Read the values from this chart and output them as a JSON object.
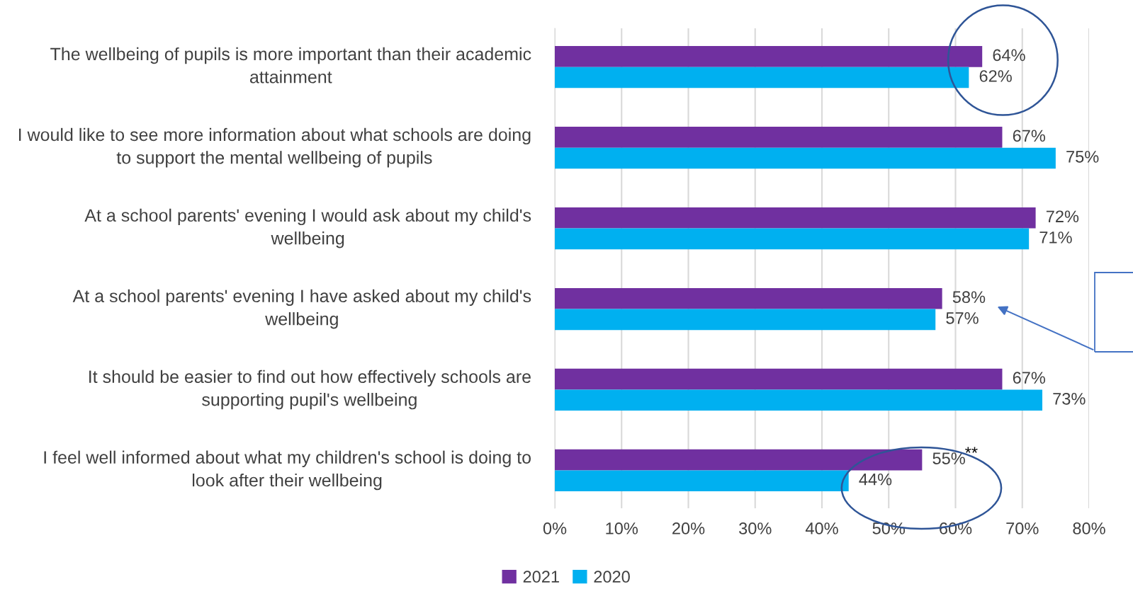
{
  "chart_data": {
    "type": "bar",
    "orientation": "horizontal",
    "categories": [
      "The wellbeing of pupils is more important than their academic attainment",
      "I would like to see more information about what schools are doing to support the mental wellbeing of pupils",
      "At a school parents' evening I would ask about my child's wellbeing",
      "At a school parents' evening I have asked about my child's wellbeing",
      "It should be easier to find out how effectively schools are supporting pupil's wellbeing",
      "I feel well informed about what my children's school is doing to look after their wellbeing"
    ],
    "series": [
      {
        "name": "2021",
        "color": "#7030a0",
        "values": [
          64,
          67,
          72,
          58,
          67,
          55
        ],
        "value_labels": [
          "64%",
          "67%",
          "72%",
          "58%",
          "67%",
          "55%"
        ]
      },
      {
        "name": "2020",
        "color": "#00b0f0",
        "values": [
          62,
          75,
          71,
          57,
          73,
          44
        ],
        "value_labels": [
          "62%",
          "75%",
          "71%",
          "57%",
          "73%",
          "44%"
        ]
      }
    ],
    "xlim": [
      0,
      80
    ],
    "xticks": [
      {
        "value": 0,
        "label": "0%"
      },
      {
        "value": 10,
        "label": "10%"
      },
      {
        "value": 20,
        "label": "20%"
      },
      {
        "value": 30,
        "label": "30%"
      },
      {
        "value": 40,
        "label": "40%"
      },
      {
        "value": 50,
        "label": "50%"
      },
      {
        "value": 60,
        "label": "60%"
      },
      {
        "value": 70,
        "label": "70%"
      },
      {
        "value": 80,
        "label": "80%"
      }
    ],
    "grid": "x",
    "legend": "bottom",
    "annotations": [
      {
        "text": "**",
        "x": 55,
        "y": "I feel well informed about what my children's school is doing to look after their wellbeing"
      }
    ]
  }
}
